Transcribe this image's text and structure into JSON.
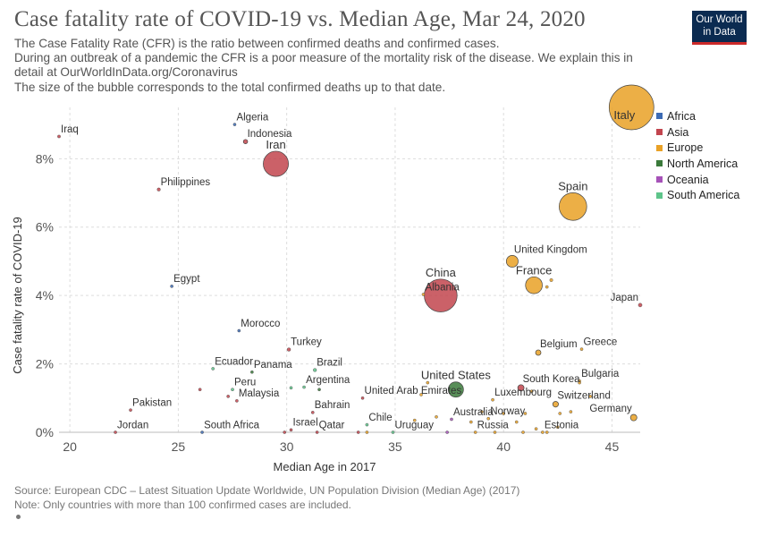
{
  "header": {
    "title": "Case fatality rate of COVID-19 vs. Median Age, Mar 24, 2020",
    "subtitle_lines": [
      "The Case Fatality Rate (CFR) is the ratio between confirmed deaths and confirmed cases.",
      "During an outbreak of a pandemic the CFR is a poor measure of the mortality risk of the disease. We explain this in",
      "detail at OurWorldInData.org/Coronavirus",
      "The size of the bubble corresponds to the total confirmed deaths up to that date."
    ]
  },
  "logo": {
    "line1": "Our World",
    "line2": "in Data"
  },
  "footer": {
    "source": "Source: European CDC – Latest Situation Update Worldwide, UN Population Division (Median Age) (2017)",
    "note": "Note: Only countries with more than 100 confirmed cases are included."
  },
  "chart_data": {
    "type": "scatter",
    "xlabel": "Median Age in 2017",
    "ylabel": "Case fatality rate of COVID-19",
    "xlim": [
      19.5,
      46.3
    ],
    "ylim": [
      0,
      9.5
    ],
    "x_ticks": [
      20,
      25,
      30,
      35,
      40,
      45
    ],
    "y_ticks": [
      0,
      2,
      4,
      6,
      8
    ],
    "y_tick_labels": [
      "0%",
      "2%",
      "4%",
      "6%",
      "8%"
    ],
    "grid": true,
    "legend_position": "top-right",
    "size_encoding": "total confirmed deaths",
    "regions": [
      {
        "name": "Africa",
        "color": "#3d6bb4"
      },
      {
        "name": "Asia",
        "color": "#c2454e"
      },
      {
        "name": "Europe",
        "color": "#e9a126"
      },
      {
        "name": "North America",
        "color": "#3b7a3b"
      },
      {
        "name": "Oceania",
        "color": "#a652b8"
      },
      {
        "name": "South America",
        "color": "#5ec48a"
      }
    ],
    "points": [
      {
        "label": "Iraq",
        "x": 19.5,
        "y": 8.65,
        "region": "Asia",
        "deaths": 27
      },
      {
        "label": "Algeria",
        "x": 27.6,
        "y": 9.0,
        "region": "Africa",
        "deaths": 19
      },
      {
        "label": "Indonesia",
        "x": 28.1,
        "y": 8.5,
        "region": "Asia",
        "deaths": 55
      },
      {
        "label": "Iran",
        "x": 29.5,
        "y": 7.85,
        "region": "Asia",
        "deaths": 1934
      },
      {
        "label": "Philippines",
        "x": 24.1,
        "y": 7.1,
        "region": "Asia",
        "deaths": 33
      },
      {
        "label": "Egypt",
        "x": 24.7,
        "y": 4.27,
        "region": "Africa",
        "deaths": 14
      },
      {
        "label": "Morocco",
        "x": 27.8,
        "y": 2.97,
        "region": "Africa",
        "deaths": 4
      },
      {
        "label": "Turkey",
        "x": 30.1,
        "y": 2.42,
        "region": "Asia",
        "deaths": 37
      },
      {
        "label": "Ecuador",
        "x": 26.6,
        "y": 1.86,
        "region": "South America",
        "deaths": 18
      },
      {
        "label": "Panama",
        "x": 28.4,
        "y": 1.76,
        "region": "North America",
        "deaths": 6
      },
      {
        "label": "Brazil",
        "x": 31.3,
        "y": 1.82,
        "region": "South America",
        "deaths": 34
      },
      {
        "label": "Argentina",
        "x": 30.8,
        "y": 1.32,
        "region": "South America",
        "deaths": 4
      },
      {
        "label": "Peru",
        "x": 27.5,
        "y": 1.25,
        "region": "South America",
        "deaths": 5
      },
      {
        "label": "Malaysia",
        "x": 27.7,
        "y": 0.92,
        "region": "Asia",
        "deaths": 14
      },
      {
        "label": "Pakistan",
        "x": 22.8,
        "y": 0.65,
        "region": "Asia",
        "deaths": 6
      },
      {
        "label": "United Arab Emirates",
        "x": 33.5,
        "y": 1.0,
        "region": "Asia",
        "deaths": 2
      },
      {
        "label": "Bahrain",
        "x": 31.2,
        "y": 0.58,
        "region": "Asia",
        "deaths": 3
      },
      {
        "label": "Chile",
        "x": 33.7,
        "y": 0.22,
        "region": "South America",
        "deaths": 2
      },
      {
        "label": "Jordan",
        "x": 22.1,
        "y": 0.0,
        "region": "Asia",
        "deaths": 0
      },
      {
        "label": "South Africa",
        "x": 26.1,
        "y": 0.0,
        "region": "Africa",
        "deaths": 0
      },
      {
        "label": "Israel",
        "x": 30.2,
        "y": 0.07,
        "region": "Asia",
        "deaths": 1
      },
      {
        "label": "Qatar",
        "x": 31.4,
        "y": 0.0,
        "region": "Asia",
        "deaths": 0
      },
      {
        "label": "Uruguay",
        "x": 34.9,
        "y": 0.0,
        "region": "South America",
        "deaths": 0
      },
      {
        "label": "China",
        "x": 37.1,
        "y": 4.0,
        "region": "Asia",
        "deaths": 3277
      },
      {
        "label": "Albania",
        "x": 36.3,
        "y": 4.03,
        "region": "Europe",
        "deaths": 4
      },
      {
        "label": "United States",
        "x": 37.8,
        "y": 1.25,
        "region": "North America",
        "deaths": 706
      },
      {
        "label": "Australia",
        "x": 37.6,
        "y": 0.38,
        "region": "Oceania",
        "deaths": 8
      },
      {
        "label": "Russia",
        "x": 38.7,
        "y": 0.0,
        "region": "Europe",
        "deaths": 1
      },
      {
        "label": "Norway",
        "x": 39.3,
        "y": 0.4,
        "region": "Europe",
        "deaths": 7
      },
      {
        "label": "Luxembourg",
        "x": 39.5,
        "y": 0.95,
        "region": "Europe",
        "deaths": 8
      },
      {
        "label": "South Korea",
        "x": 40.8,
        "y": 1.3,
        "region": "Asia",
        "deaths": 120
      },
      {
        "label": "United Kingdom",
        "x": 40.4,
        "y": 5.0,
        "region": "Europe",
        "deaths": 422
      },
      {
        "label": "France",
        "x": 41.4,
        "y": 4.3,
        "region": "Europe",
        "deaths": 860
      },
      {
        "label": "Spain",
        "x": 43.2,
        "y": 6.6,
        "region": "Europe",
        "deaths": 2311
      },
      {
        "label": "Italy",
        "x": 45.9,
        "y": 9.5,
        "region": "Europe",
        "deaths": 6077
      },
      {
        "label": "Japan",
        "x": 46.3,
        "y": 3.72,
        "region": "Asia",
        "deaths": 42
      },
      {
        "label": "Belgium",
        "x": 41.6,
        "y": 2.33,
        "region": "Europe",
        "deaths": 88
      },
      {
        "label": "Greece",
        "x": 43.6,
        "y": 2.43,
        "region": "Europe",
        "deaths": 17
      },
      {
        "label": "Bulgaria",
        "x": 43.5,
        "y": 1.5,
        "region": "Europe",
        "deaths": 3
      },
      {
        "label": "Switzerland",
        "x": 42.4,
        "y": 0.82,
        "region": "Europe",
        "deaths": 98
      },
      {
        "label": "Estonia",
        "x": 41.8,
        "y": 0.0,
        "region": "Europe",
        "deaths": 0
      },
      {
        "label": "Germany",
        "x": 46.0,
        "y": 0.43,
        "region": "Europe",
        "deaths": 126
      },
      {
        "label": "",
        "x": 42.0,
        "y": 4.25,
        "region": "Europe",
        "deaths": 3
      },
      {
        "label": "",
        "x": 42.2,
        "y": 4.45,
        "region": "Europe",
        "deaths": 30
      },
      {
        "label": "",
        "x": 26.0,
        "y": 1.25,
        "region": "Asia",
        "deaths": 1
      },
      {
        "label": "",
        "x": 27.3,
        "y": 1.05,
        "region": "Asia",
        "deaths": 1
      },
      {
        "label": "",
        "x": 30.2,
        "y": 1.3,
        "region": "South America",
        "deaths": 1
      },
      {
        "label": "",
        "x": 31.5,
        "y": 1.25,
        "region": "North America",
        "deaths": 1
      },
      {
        "label": "",
        "x": 36.2,
        "y": 1.1,
        "region": "Europe",
        "deaths": 1
      },
      {
        "label": "",
        "x": 36.5,
        "y": 1.45,
        "region": "Europe",
        "deaths": 1
      },
      {
        "label": "",
        "x": 36.9,
        "y": 0.45,
        "region": "Europe",
        "deaths": 1
      },
      {
        "label": "",
        "x": 35.9,
        "y": 0.35,
        "region": "Europe",
        "deaths": 1
      },
      {
        "label": "",
        "x": 39.0,
        "y": 0.6,
        "region": "Europe",
        "deaths": 1
      },
      {
        "label": "",
        "x": 40.0,
        "y": 0.55,
        "region": "Europe",
        "deaths": 1
      },
      {
        "label": "",
        "x": 40.6,
        "y": 0.3,
        "region": "Europe",
        "deaths": 1
      },
      {
        "label": "",
        "x": 41.0,
        "y": 0.55,
        "region": "Europe",
        "deaths": 1
      },
      {
        "label": "",
        "x": 41.3,
        "y": 1.2,
        "region": "Europe",
        "deaths": 2
      },
      {
        "label": "",
        "x": 42.6,
        "y": 0.55,
        "region": "Europe",
        "deaths": 2
      },
      {
        "label": "",
        "x": 43.1,
        "y": 0.6,
        "region": "Europe",
        "deaths": 2
      },
      {
        "label": "",
        "x": 42.5,
        "y": 0.15,
        "region": "Europe",
        "deaths": 1
      },
      {
        "label": "",
        "x": 41.5,
        "y": 0.1,
        "region": "Europe",
        "deaths": 1
      },
      {
        "label": "",
        "x": 44.0,
        "y": 1.05,
        "region": "Europe",
        "deaths": 2
      },
      {
        "label": "",
        "x": 43.5,
        "y": 1.45,
        "region": "Europe",
        "deaths": 2
      },
      {
        "label": "",
        "x": 39.6,
        "y": 0.0,
        "region": "Europe",
        "deaths": 0
      },
      {
        "label": "",
        "x": 40.9,
        "y": 0.0,
        "region": "Europe",
        "deaths": 0
      },
      {
        "label": "",
        "x": 42.0,
        "y": 0.0,
        "region": "Europe",
        "deaths": 0
      },
      {
        "label": "",
        "x": 38.5,
        "y": 0.3,
        "region": "Europe",
        "deaths": 1
      },
      {
        "label": "",
        "x": 33.3,
        "y": 0.0,
        "region": "Asia",
        "deaths": 0
      },
      {
        "label": "",
        "x": 33.7,
        "y": 0.0,
        "region": "Europe",
        "deaths": 0
      },
      {
        "label": "",
        "x": 29.9,
        "y": 0.0,
        "region": "Asia",
        "deaths": 0
      },
      {
        "label": "",
        "x": 37.4,
        "y": 0.0,
        "region": "Oceania",
        "deaths": 0
      }
    ]
  }
}
